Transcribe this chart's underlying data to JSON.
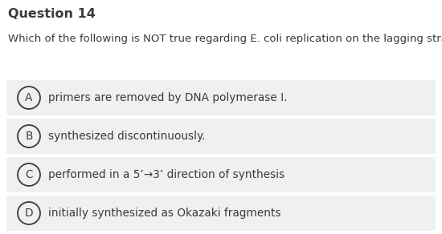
{
  "title": "Question 14",
  "question": "Which of the following is NOT true regarding E. coli replication on the lagging strand?",
  "options": [
    {
      "label": "A",
      "text": "primers are removed by DNA polymerase I."
    },
    {
      "label": "B",
      "text": "synthesized discontinuously."
    },
    {
      "label": "C",
      "text": "performed in a 5’→3’ direction of synthesis"
    },
    {
      "label": "D",
      "text": "initially synthesized as Okazaki fragments"
    }
  ],
  "bg_color": "#ffffff",
  "option_bg_color": "#f0f0f0",
  "title_fontsize": 11.5,
  "question_fontsize": 9.5,
  "option_fontsize": 9.8,
  "text_color": "#3a3a3a",
  "circle_color": "#3a3a3a"
}
